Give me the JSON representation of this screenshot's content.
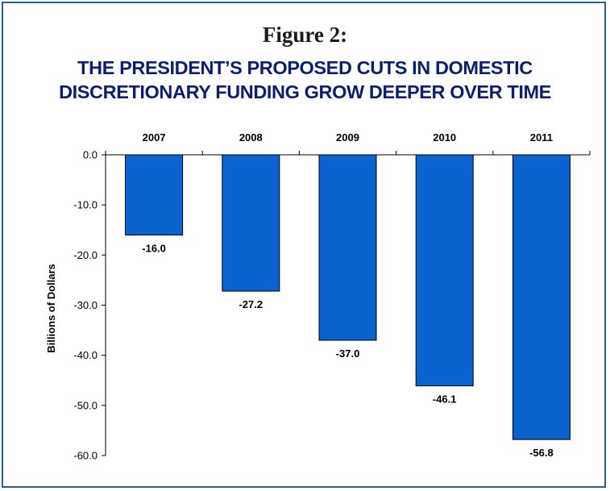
{
  "figure_label": "Figure 2:",
  "title_lines": [
    "THE PRESIDENT’S PROPOSED CUTS IN DOMESTIC",
    "DISCRETIONARY FUNDING GROW DEEPER OVER TIME"
  ],
  "colors": {
    "bar": "#0a63cf",
    "bar_edge": "#000000",
    "title": "#0a1f6f",
    "frame": "#2b5f8e"
  },
  "chart_data": {
    "type": "bar",
    "categories": [
      "2007",
      "2008",
      "2009",
      "2010",
      "2011"
    ],
    "values": [
      -16.0,
      -27.2,
      -37.0,
      -46.1,
      -56.8
    ],
    "value_labels": [
      "-16.0",
      "-27.2",
      "-37.0",
      "-46.1",
      "-56.8"
    ],
    "ylabel": "Billions of Dollars",
    "xlabel": "",
    "ylim": [
      -60,
      0
    ],
    "yticks": [
      0,
      -10,
      -20,
      -30,
      -40,
      -50,
      -60
    ],
    "ytick_labels": [
      "0.0",
      "-10.0",
      "-20.0",
      "-30.0",
      "-40.0",
      "-50.0",
      "-60.0"
    ],
    "category_axis_position": "top",
    "grid": false,
    "legend": "none"
  }
}
